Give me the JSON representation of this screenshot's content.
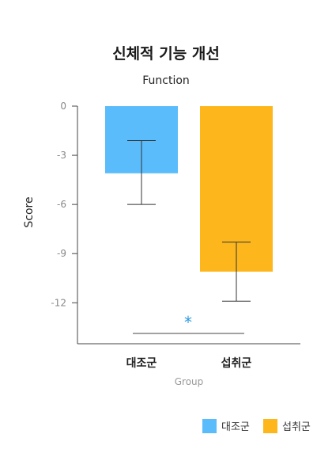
{
  "chart_data": {
    "type": "bar",
    "title": "신체적 기능 개선",
    "subtitle": "Function",
    "xlabel": "Group",
    "ylabel": "Score",
    "categories": [
      "대조군",
      "섭취군"
    ],
    "values": [
      -4.1,
      -10.1
    ],
    "error_low": [
      -6.0,
      -11.9
    ],
    "error_high": [
      -2.1,
      -8.3
    ],
    "colors": [
      "#5bbcfb",
      "#fdb71d"
    ],
    "ylim": [
      -14.5,
      0
    ],
    "yticks": [
      0,
      -3,
      -6,
      -9,
      -12
    ],
    "ytick_labels": [
      "0",
      "-3",
      "-6",
      "-9",
      "-12"
    ],
    "annotation": {
      "text": "*",
      "color": "#2a9ae0"
    },
    "legend": {
      "placement": "bottom-right",
      "items": [
        {
          "label": "대조군",
          "color": "#5bbcfb"
        },
        {
          "label": "섭취군",
          "color": "#fdb71d"
        }
      ]
    },
    "grid": false
  }
}
